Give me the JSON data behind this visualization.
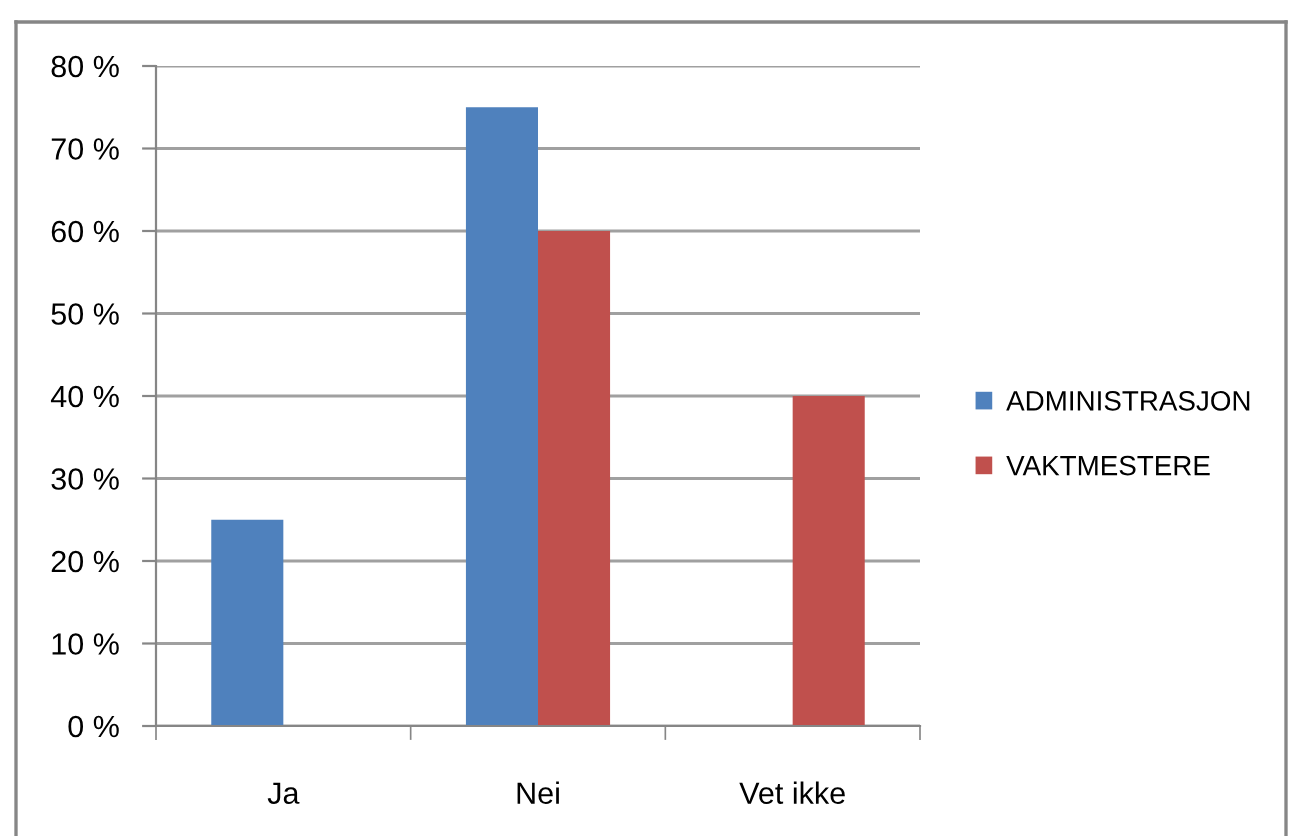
{
  "chart_data": {
    "type": "bar",
    "categories": [
      "Ja",
      "Nei",
      "Vet ikke"
    ],
    "series": [
      {
        "name": "ADMINISTRASJON",
        "color": "#4f81bd",
        "values": [
          25,
          75,
          0
        ]
      },
      {
        "name": "VAKTMESTERE",
        "color": "#c0504d",
        "values": [
          0,
          60,
          40
        ]
      }
    ],
    "ylim": [
      0,
      80
    ],
    "yticks": [
      {
        "value": 0,
        "label": "0 %"
      },
      {
        "value": 10,
        "label": "10 %"
      },
      {
        "value": 20,
        "label": "20 %"
      },
      {
        "value": 30,
        "label": "30 %"
      },
      {
        "value": 40,
        "label": "40 %"
      },
      {
        "value": 50,
        "label": "50 %"
      },
      {
        "value": 60,
        "label": "60 %"
      },
      {
        "value": 70,
        "label": "70 %"
      },
      {
        "value": 80,
        "label": "80 %"
      }
    ],
    "grid": "y",
    "legend": "right"
  }
}
